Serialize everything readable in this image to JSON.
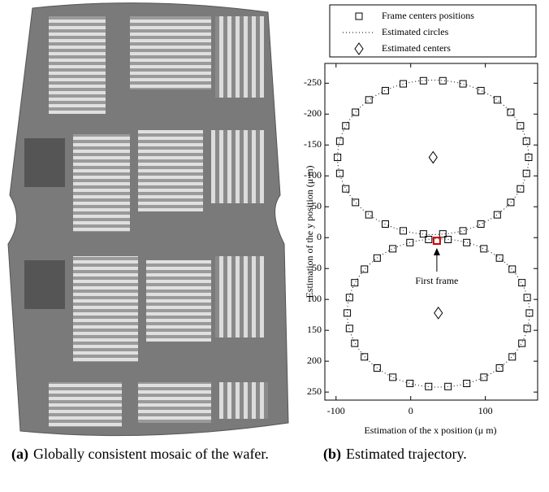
{
  "figures": [
    {
      "label": "(a)",
      "caption": "Globally consistent mosaic of the wafer."
    },
    {
      "label": "(b)",
      "caption": "Estimated trajectory."
    }
  ],
  "chart_data": {
    "type": "scatter",
    "xlabel": "Estimation of the x position (μ m)",
    "ylabel": "Estimation of the y position (μ m)",
    "xlim": [
      -115,
      170
    ],
    "ylim": [
      -282,
      263
    ],
    "y_inverted": true,
    "xticks": [
      -100,
      0,
      100
    ],
    "yticks": [
      -250,
      -200,
      -150,
      -100,
      -50,
      0,
      50,
      100,
      150,
      200,
      250
    ],
    "legend": "top",
    "series": [
      {
        "name": "Frame centers positions",
        "marker": "square",
        "color": "#000000",
        "x": [
          158,
          155,
          147,
          134,
          116,
          94,
          70,
          43,
          17,
          -10,
          -34,
          -56,
          -74,
          -87,
          -95,
          -98,
          -95,
          -87,
          -74,
          -56,
          -34,
          -10,
          17,
          43,
          70,
          94,
          116,
          134,
          147,
          155,
          159,
          156,
          149,
          136,
          119,
          98,
          75,
          50,
          24,
          -1,
          -24,
          -45,
          -62,
          -75,
          -82,
          -85,
          -82,
          -75,
          -62,
          -45,
          -24,
          -1,
          24,
          50,
          75,
          98,
          119,
          136,
          149,
          156
        ],
        "y": [
          -130,
          -104,
          -79,
          -57,
          -37,
          -22,
          -11,
          -6,
          -6,
          -11,
          -22,
          -37,
          -57,
          -79,
          -104,
          -130,
          -156,
          -181,
          -203,
          -223,
          -238,
          -249,
          -254,
          -254,
          -249,
          -238,
          -223,
          -203,
          -181,
          -156,
          122,
          147,
          171,
          193,
          211,
          226,
          236,
          241,
          241,
          236,
          226,
          211,
          193,
          171,
          147,
          122,
          97,
          73,
          51,
          33,
          18,
          8,
          3,
          3,
          8,
          18,
          33,
          51,
          73,
          97
        ]
      },
      {
        "name": "Estimated circles",
        "marker": "dotted-line",
        "color": "#000000",
        "circles": [
          {
            "center": [
              30,
              -130
            ],
            "radius": [
              128,
              125
            ]
          },
          {
            "center": [
              37,
              122
            ],
            "radius": [
              122,
              120
            ]
          }
        ]
      },
      {
        "name": "Estimated centers",
        "marker": "diamond",
        "color": "#000000",
        "x": [
          30,
          37
        ],
        "y": [
          -130,
          122
        ]
      }
    ],
    "highlight": {
      "x": 35,
      "y": 5,
      "color": "#cc0000"
    },
    "annotation": {
      "text": "First frame",
      "x": 35,
      "y": 5
    }
  }
}
